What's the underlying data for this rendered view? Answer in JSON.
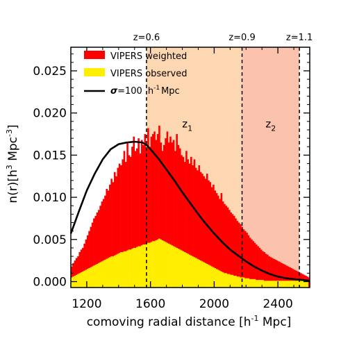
{
  "chart_data": {
    "type": "bar",
    "xlabel_main": "comoving radial distance [h",
    "xlabel_sup": "-1",
    "xlabel_tail": " Mpc]",
    "ylabel_main": "n(r)[h",
    "ylabel_sup1": "3",
    "ylabel_mid": " Mpc",
    "ylabel_sup2": "-3",
    "ylabel_tail": "]",
    "xlim": [
      1100,
      2600
    ],
    "ylim": [
      -0.0007,
      0.0278
    ],
    "x_ticks": [
      1200,
      1600,
      2000,
      2400
    ],
    "x_tick_labels": [
      "1200",
      "1600",
      "2000",
      "2400"
    ],
    "y_ticks": [
      0.0,
      0.005,
      0.01,
      0.015,
      0.02,
      0.025
    ],
    "y_tick_labels": [
      "0.000",
      "0.005",
      "0.010",
      "0.015",
      "0.020",
      "0.025"
    ],
    "bin_start": 1100,
    "bin_width": 10,
    "series": [
      {
        "name": "VIPERS weighted",
        "color": "#ff0000",
        "values": [
          0.0018,
          0.0022,
          0.0025,
          0.0028,
          0.003,
          0.0035,
          0.0038,
          0.004,
          0.0045,
          0.005,
          0.0055,
          0.006,
          0.0065,
          0.007,
          0.0075,
          0.0078,
          0.0082,
          0.0085,
          0.009,
          0.0095,
          0.0098,
          0.0102,
          0.011,
          0.0108,
          0.0115,
          0.0122,
          0.0118,
          0.013,
          0.0125,
          0.0135,
          0.014,
          0.0138,
          0.0145,
          0.0155,
          0.0142,
          0.0165,
          0.015,
          0.0148,
          0.016,
          0.0172,
          0.0155,
          0.0158,
          0.017,
          0.0152,
          0.0168,
          0.0162,
          0.0175,
          0.0158,
          0.0182,
          0.016,
          0.0172,
          0.0175,
          0.0178,
          0.0168,
          0.0175,
          0.0185,
          0.0165,
          0.0155,
          0.0162,
          0.017,
          0.0178,
          0.0165,
          0.0172,
          0.0165,
          0.0168,
          0.0155,
          0.0175,
          0.0162,
          0.0158,
          0.015,
          0.0148,
          0.0142,
          0.0155,
          0.0145,
          0.014,
          0.0148,
          0.0138,
          0.0145,
          0.0135,
          0.0132,
          0.0138,
          0.013,
          0.0128,
          0.0125,
          0.0122,
          0.0128,
          0.012,
          0.0118,
          0.0112,
          0.0115,
          0.0108,
          0.0105,
          0.0102,
          0.0098,
          0.0105,
          0.0095,
          0.0092,
          0.009,
          0.0088,
          0.0085,
          0.0082,
          0.008,
          0.0078,
          0.0075,
          0.0072,
          0.007,
          0.0068,
          0.0065,
          0.0062,
          0.006,
          0.0058,
          0.0055,
          0.0052,
          0.005,
          0.0048,
          0.0046,
          0.0044,
          0.0042,
          0.004,
          0.0038,
          0.0036,
          0.0035,
          0.0033,
          0.0032,
          0.003,
          0.0029,
          0.0028,
          0.0027,
          0.0026,
          0.0025,
          0.0024,
          0.0023,
          0.0022,
          0.0021,
          0.002,
          0.0019,
          0.0018,
          0.0017,
          0.0016,
          0.0015,
          0.0014,
          0.0013,
          0.0012,
          0.0011,
          0.001,
          0.0009,
          0.0008,
          0.0007,
          0.0006,
          0.0005
        ]
      },
      {
        "name": "VIPERS observed",
        "color": "#ffee00",
        "values": [
          0.0005,
          0.0006,
          0.0007,
          0.0008,
          0.0009,
          0.001,
          0.0011,
          0.0012,
          0.0013,
          0.0014,
          0.0015,
          0.0016,
          0.0017,
          0.0018,
          0.0019,
          0.002,
          0.0021,
          0.0022,
          0.0023,
          0.0024,
          0.0025,
          0.0026,
          0.0027,
          0.0028,
          0.0029,
          0.003,
          0.003,
          0.0031,
          0.0032,
          0.0033,
          0.0034,
          0.0035,
          0.0035,
          0.0036,
          0.0036,
          0.0037,
          0.0038,
          0.0038,
          0.0039,
          0.004,
          0.004,
          0.0041,
          0.0042,
          0.0042,
          0.0043,
          0.0044,
          0.0044,
          0.0045,
          0.0046,
          0.0046,
          0.0047,
          0.0048,
          0.0048,
          0.0049,
          0.005,
          0.0051,
          0.005,
          0.0049,
          0.0048,
          0.0047,
          0.0046,
          0.0045,
          0.0044,
          0.0043,
          0.0042,
          0.0041,
          0.004,
          0.0039,
          0.0038,
          0.0037,
          0.0036,
          0.0035,
          0.0034,
          0.0033,
          0.0032,
          0.0031,
          0.003,
          0.0029,
          0.0028,
          0.0027,
          0.0026,
          0.0025,
          0.0024,
          0.0023,
          0.0022,
          0.0021,
          0.002,
          0.0019,
          0.0018,
          0.0017,
          0.0016,
          0.0015,
          0.0014,
          0.0013,
          0.0012,
          0.0011,
          0.001,
          0.001,
          0.0009,
          0.0009,
          0.0008,
          0.0008,
          0.0007,
          0.0007,
          0.0006,
          0.0006,
          0.0005,
          0.0005,
          0.0005,
          0.0004,
          0.0004,
          0.0004,
          0.0003,
          0.0003,
          0.0003,
          0.0003,
          0.0002,
          0.0002,
          0.0002,
          0.0002,
          0.0002,
          0.0001,
          0.0001,
          0.0001,
          0.0001,
          0.0001,
          0.0001,
          0.0001,
          0.0001,
          0.0001,
          0.0001,
          0.0001,
          0.0001,
          0.0001,
          0.0001,
          0.0001,
          0.0001,
          0.0001,
          0.0001,
          0.0001,
          0.0001,
          0.0001,
          0.0001,
          0.0001,
          0.0001,
          0.0001,
          0.0001,
          0.0001,
          0.0001
        ]
      }
    ],
    "model_curve": {
      "name_symbol": "σ",
      "name_value": "=100",
      "name_unit_main": "h",
      "name_unit_sup": "-1",
      "name_unit_tail": "Mpc",
      "color": "#000000",
      "x": [
        1100,
        1150,
        1200,
        1250,
        1300,
        1350,
        1400,
        1450,
        1500,
        1550,
        1575,
        1600,
        1650,
        1700,
        1750,
        1800,
        1850,
        1900,
        1950,
        2000,
        2050,
        2100,
        2150,
        2200,
        2250,
        2300,
        2350,
        2400,
        2450,
        2500,
        2550,
        2600
      ],
      "y": [
        0.0057,
        0.0083,
        0.0108,
        0.0128,
        0.0145,
        0.0157,
        0.0163,
        0.0165,
        0.0166,
        0.0165,
        0.0162,
        0.0157,
        0.0146,
        0.0133,
        0.012,
        0.0106,
        0.0093,
        0.008,
        0.0068,
        0.0057,
        0.0047,
        0.0038,
        0.0031,
        0.0024,
        0.0018,
        0.0013,
        0.0009,
        0.0006,
        0.0004,
        0.0003,
        0.0002,
        0.0001
      ]
    },
    "redshift_markers": [
      {
        "label": "z=0.6",
        "x": 1575
      },
      {
        "label": "z=0.9",
        "x": 2175
      },
      {
        "label": "z=1.1",
        "x": 2535
      }
    ],
    "regions": [
      {
        "label_main": "z",
        "label_sub": "1",
        "x0": 1575,
        "x1": 2175,
        "color": "#fcd7b1"
      },
      {
        "label_main": "z",
        "label_sub": "2",
        "x0": 2175,
        "x1": 2535,
        "color": "#fbc3ae"
      }
    ],
    "legend_position": "top-left"
  }
}
